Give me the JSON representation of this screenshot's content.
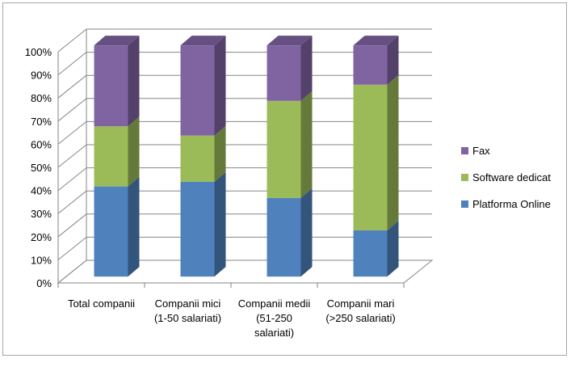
{
  "chart_data": {
    "type": "bar",
    "stacked": true,
    "percent": true,
    "three_d": true,
    "categories": [
      [
        "Total companii"
      ],
      [
        "Companii mici",
        "(1-50 salariati)"
      ],
      [
        "Companii medii",
        "(51-250",
        "salariati)"
      ],
      [
        "Companii mari",
        "(>250 salariati)"
      ]
    ],
    "series": [
      {
        "name": "Platforma Online",
        "values": [
          39,
          41,
          34,
          20
        ],
        "color": "#4f81bd"
      },
      {
        "name": "Software dedicat",
        "values": [
          26,
          20,
          42,
          63
        ],
        "color": "#9bbb59"
      },
      {
        "name": "Fax",
        "values": [
          35,
          39,
          24,
          17
        ],
        "color": "#8064a2"
      }
    ],
    "yticks": [
      "0%",
      "10%",
      "20%",
      "30%",
      "40%",
      "50%",
      "60%",
      "70%",
      "80%",
      "90%",
      "100%"
    ],
    "ylim": [
      0,
      100
    ],
    "grid": true,
    "legend_position": "right"
  }
}
